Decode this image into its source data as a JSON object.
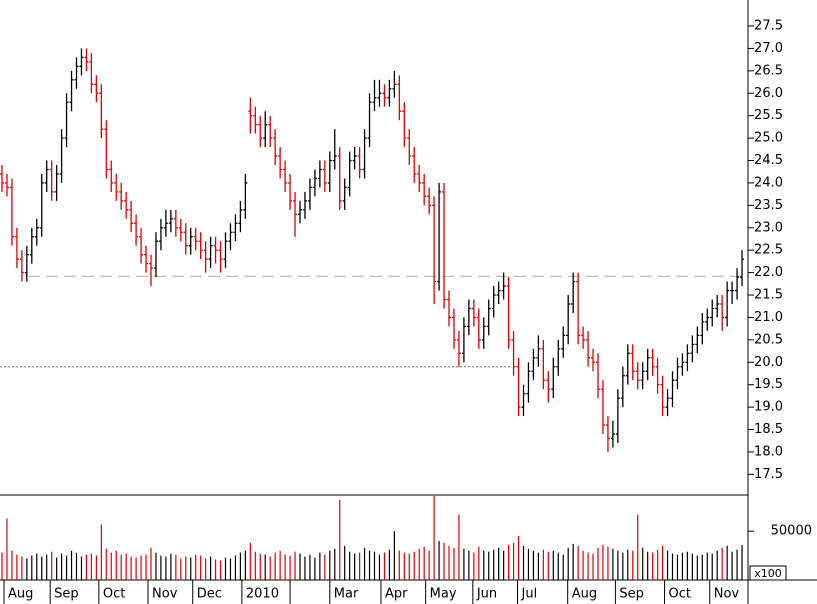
{
  "chart_data": [
    {
      "type": "ohlc",
      "up_color": "#000000",
      "down_color": "#e00000",
      "x": [
        0,
        1,
        2,
        3,
        4,
        5,
        6,
        7,
        8,
        9,
        10,
        11,
        12,
        13,
        14,
        15,
        16,
        17,
        18,
        19,
        20,
        21,
        22,
        23,
        24,
        25,
        26,
        27,
        28,
        29,
        30,
        31,
        32,
        33,
        34,
        35,
        36,
        37,
        38,
        39,
        40,
        41,
        42,
        43,
        44,
        45,
        46,
        47,
        48,
        49,
        50,
        51,
        52,
        53,
        54,
        55,
        56,
        57,
        58,
        59,
        60,
        61,
        62,
        63,
        64,
        65,
        66,
        67,
        68,
        69,
        70,
        71,
        72,
        73,
        74,
        75,
        76,
        77,
        78,
        79,
        80,
        81,
        82,
        83,
        84,
        85,
        86,
        87,
        88,
        89,
        90,
        91,
        92,
        93,
        94,
        95,
        96,
        97,
        98,
        99,
        100,
        101,
        102,
        103,
        104,
        105,
        106,
        107,
        108,
        109,
        110,
        111,
        112,
        113,
        114,
        115,
        116,
        117,
        118,
        119,
        120,
        121,
        122,
        123,
        124,
        125,
        126,
        127,
        128,
        129,
        130,
        131,
        132,
        133,
        134,
        135,
        136,
        137,
        138,
        139,
        140,
        141,
        142,
        143,
        144,
        145,
        146,
        147,
        148,
        149
      ],
      "open": [
        24.2,
        24.0,
        23.9,
        22.8,
        22.3,
        22.0,
        22.4,
        22.8,
        23.0,
        24.0,
        24.3,
        23.8,
        24.2,
        25.0,
        25.8,
        26.3,
        26.6,
        26.8,
        26.7,
        26.2,
        26.0,
        25.2,
        24.3,
        24.0,
        23.8,
        23.6,
        23.4,
        23.1,
        22.8,
        22.4,
        22.2,
        22.1,
        22.7,
        23.0,
        23.1,
        23.2,
        23.0,
        22.9,
        22.6,
        22.8,
        22.7,
        22.5,
        22.3,
        22.6,
        22.5,
        22.3,
        22.7,
        22.9,
        23.1,
        23.4,
        25.6,
        25.5,
        25.3,
        25.0,
        25.3,
        25.0,
        24.6,
        24.3,
        24.0,
        23.6,
        23.3,
        23.4,
        23.6,
        23.9,
        24.1,
        24.3,
        24.0,
        24.5,
        24.6,
        23.6,
        23.9,
        24.5,
        24.6,
        24.3,
        25.0,
        25.8,
        25.9,
        26.0,
        25.9,
        26.1,
        26.2,
        25.6,
        25.0,
        24.6,
        24.2,
        24.0,
        23.7,
        23.5,
        21.8,
        23.8,
        21.4,
        21.0,
        20.5,
        20.2,
        20.8,
        21.2,
        21.0,
        20.5,
        20.8,
        21.2,
        21.5,
        21.6,
        21.7,
        20.5,
        19.9,
        19.0,
        19.3,
        19.8,
        20.1,
        20.3,
        19.6,
        19.4,
        19.9,
        20.3,
        20.6,
        21.3,
        21.8,
        20.6,
        20.5,
        20.1,
        20.0,
        19.4,
        18.6,
        18.3,
        18.4,
        19.2,
        19.7,
        20.2,
        19.8,
        19.6,
        19.8,
        20.1,
        19.9,
        19.5,
        19.0,
        19.2,
        19.6,
        19.9,
        20.0,
        20.2,
        20.4,
        20.6,
        20.9,
        21.0,
        21.2,
        21.3,
        21.0,
        21.6,
        21.6,
        21.9
      ],
      "high": [
        24.4,
        24.2,
        24.1,
        23.0,
        22.5,
        22.6,
        23.0,
        23.2,
        24.2,
        24.5,
        24.5,
        24.4,
        25.2,
        26.0,
        26.5,
        26.8,
        27.0,
        27.0,
        26.9,
        26.4,
        26.2,
        25.4,
        24.5,
        24.2,
        24.0,
        23.8,
        23.6,
        23.3,
        23.0,
        22.6,
        22.4,
        22.9,
        23.2,
        23.4,
        23.4,
        23.4,
        23.2,
        23.1,
        23.0,
        23.0,
        22.9,
        22.7,
        22.8,
        22.8,
        22.7,
        22.9,
        23.1,
        23.3,
        23.6,
        24.2,
        25.9,
        25.7,
        25.5,
        25.6,
        25.5,
        25.2,
        24.8,
        24.5,
        24.2,
        23.8,
        23.6,
        23.8,
        24.1,
        24.3,
        24.5,
        24.5,
        24.7,
        25.2,
        24.8,
        24.1,
        24.7,
        24.8,
        24.8,
        25.2,
        26.0,
        26.3,
        26.3,
        26.2,
        26.3,
        26.5,
        26.4,
        25.8,
        25.2,
        24.8,
        24.4,
        24.2,
        23.9,
        23.7,
        24.0,
        24.0,
        21.6,
        21.2,
        20.7,
        21.0,
        21.4,
        21.4,
        21.2,
        21.0,
        21.4,
        21.7,
        21.8,
        22.0,
        21.9,
        20.7,
        20.1,
        19.5,
        20.0,
        20.3,
        20.6,
        20.5,
        19.8,
        20.1,
        20.5,
        20.8,
        21.5,
        22.0,
        22.0,
        20.8,
        20.7,
        20.3,
        20.2,
        19.6,
        18.8,
        18.7,
        19.4,
        19.9,
        20.4,
        20.4,
        20.0,
        20.0,
        20.3,
        20.3,
        20.1,
        19.7,
        19.4,
        19.8,
        20.1,
        20.2,
        20.4,
        20.6,
        20.8,
        21.1,
        21.2,
        21.4,
        21.5,
        21.5,
        21.8,
        21.8,
        22.1,
        22.5
      ],
      "low": [
        23.8,
        23.7,
        22.6,
        22.1,
        21.8,
        21.8,
        22.2,
        22.6,
        22.8,
        23.8,
        23.6,
        23.6,
        24.0,
        24.8,
        25.6,
        26.1,
        26.4,
        26.5,
        26.0,
        25.8,
        25.0,
        24.1,
        23.8,
        23.6,
        23.4,
        23.2,
        22.9,
        22.6,
        22.2,
        22.0,
        21.7,
        21.9,
        22.5,
        22.8,
        22.9,
        22.8,
        22.7,
        22.4,
        22.4,
        22.5,
        22.3,
        22.0,
        22.1,
        22.2,
        22.0,
        22.1,
        22.5,
        22.7,
        22.9,
        23.2,
        25.1,
        25.1,
        24.8,
        24.8,
        24.8,
        24.4,
        24.1,
        23.8,
        23.4,
        22.8,
        23.1,
        23.2,
        23.4,
        23.7,
        23.9,
        23.8,
        23.8,
        24.3,
        23.4,
        23.4,
        23.7,
        24.3,
        24.1,
        24.1,
        24.8,
        25.6,
        25.7,
        25.7,
        25.7,
        25.9,
        25.4,
        24.8,
        24.4,
        24.0,
        23.8,
        23.5,
        23.3,
        21.3,
        21.6,
        21.2,
        20.8,
        20.3,
        19.9,
        20.0,
        20.6,
        20.8,
        20.3,
        20.3,
        20.6,
        21.0,
        21.3,
        21.4,
        20.3,
        19.7,
        18.8,
        18.8,
        19.1,
        19.6,
        19.9,
        19.4,
        19.1,
        19.2,
        19.7,
        20.1,
        20.4,
        21.1,
        20.4,
        20.3,
        19.9,
        19.8,
        19.2,
        18.4,
        18.0,
        18.1,
        18.2,
        19.0,
        19.5,
        19.6,
        19.4,
        19.4,
        19.6,
        19.7,
        19.3,
        18.8,
        18.8,
        19.0,
        19.4,
        19.7,
        19.8,
        20.0,
        20.2,
        20.4,
        20.7,
        20.8,
        21.0,
        20.7,
        20.8,
        21.3,
        21.4,
        21.7
      ],
      "close": [
        24.0,
        23.9,
        22.8,
        22.3,
        22.0,
        22.4,
        22.8,
        23.0,
        24.0,
        24.3,
        23.8,
        24.2,
        25.0,
        25.8,
        26.3,
        26.6,
        26.8,
        26.7,
        26.2,
        26.0,
        25.2,
        24.3,
        24.0,
        23.8,
        23.6,
        23.4,
        23.1,
        22.8,
        22.4,
        22.2,
        22.1,
        22.7,
        23.0,
        23.1,
        23.2,
        23.0,
        22.9,
        22.6,
        22.8,
        22.7,
        22.5,
        22.3,
        22.6,
        22.5,
        22.3,
        22.7,
        22.9,
        23.1,
        23.4,
        24.0,
        25.5,
        25.3,
        25.0,
        25.3,
        25.0,
        24.6,
        24.3,
        24.0,
        23.6,
        23.3,
        23.4,
        23.6,
        23.9,
        24.1,
        24.3,
        24.0,
        24.5,
        24.6,
        23.6,
        23.9,
        24.5,
        24.6,
        24.3,
        25.0,
        25.8,
        25.9,
        26.0,
        25.9,
        26.1,
        26.2,
        25.6,
        25.0,
        24.6,
        24.2,
        24.0,
        23.7,
        23.5,
        21.8,
        23.8,
        21.4,
        21.0,
        20.5,
        20.2,
        20.8,
        21.2,
        21.0,
        20.5,
        20.8,
        21.2,
        21.5,
        21.6,
        21.7,
        20.5,
        19.9,
        19.0,
        19.3,
        19.8,
        20.1,
        20.3,
        19.6,
        19.4,
        19.9,
        20.3,
        20.6,
        21.3,
        21.8,
        20.6,
        20.5,
        20.1,
        20.0,
        19.4,
        18.6,
        18.3,
        18.4,
        19.2,
        19.7,
        20.2,
        19.8,
        19.6,
        19.8,
        20.1,
        19.9,
        19.5,
        19.0,
        19.2,
        19.6,
        19.9,
        20.0,
        20.2,
        20.4,
        20.6,
        20.9,
        21.0,
        21.2,
        21.3,
        21.0,
        21.6,
        21.6,
        21.9,
        22.3
      ],
      "xlim": [
        0,
        150
      ],
      "xticks": [
        {
          "value": 0.4,
          "label": "Aug"
        },
        {
          "value": 9.7,
          "label": "Sep"
        },
        {
          "value": 19.5,
          "label": "Oct"
        },
        {
          "value": 29.4,
          "label": "Nov"
        },
        {
          "value": 38.4,
          "label": "Dec"
        },
        {
          "value": 48.3,
          "label": "2010"
        },
        {
          "value": 58,
          "label": null
        },
        {
          "value": 66,
          "label": "Mar"
        },
        {
          "value": 76.3,
          "label": "Apr"
        },
        {
          "value": 85.3,
          "label": "May"
        },
        {
          "value": 94.8,
          "label": "Jun"
        },
        {
          "value": 103.8,
          "label": "Jul"
        },
        {
          "value": 113.9,
          "label": "Aug"
        },
        {
          "value": 123.5,
          "label": "Sep"
        },
        {
          "value": 133.4,
          "label": "Oct"
        },
        {
          "value": 142.5,
          "label": "Nov"
        }
      ],
      "ylim": [
        17.04,
        28.08
      ],
      "yticks": [
        17.5,
        {
          "value": 18,
          "label": "18.0"
        },
        18.5,
        {
          "value": 19,
          "label": "19.0"
        },
        19.5,
        {
          "value": 20,
          "label": "20.0"
        },
        20.5,
        {
          "value": 21,
          "label": "21.0"
        },
        21.5,
        {
          "value": 22,
          "label": "22.0"
        },
        22.5,
        {
          "value": 23,
          "label": "23.0"
        },
        23.5,
        {
          "value": 24,
          "label": "24.0"
        },
        24.5,
        {
          "value": 25,
          "label": "25.0"
        },
        25.5,
        {
          "value": 26,
          "label": "26.0"
        },
        26.5,
        {
          "value": 27,
          "label": "27.0"
        },
        27.5
      ],
      "reference_lines": [
        {
          "value": 21.92,
          "style": "dashed"
        },
        {
          "value": 19.9,
          "style": "dotted"
        }
      ]
    },
    {
      "type": "bar",
      "unit_label": "x100",
      "values": [
        28000,
        63000,
        30000,
        26000,
        24000,
        22000,
        25000,
        27000,
        24000,
        26000,
        29000,
        23000,
        27000,
        25000,
        30000,
        28000,
        24000,
        26000,
        27000,
        25000,
        57000,
        32000,
        28000,
        30000,
        26000,
        27000,
        24000,
        23000,
        25000,
        26000,
        33000,
        28000,
        25000,
        24000,
        27000,
        26000,
        22000,
        24000,
        23000,
        26000,
        25000,
        22000,
        24000,
        21000,
        20000,
        23000,
        22000,
        25000,
        28000,
        30000,
        38000,
        29000,
        27000,
        26000,
        24000,
        28000,
        30000,
        26000,
        25000,
        29000,
        27000,
        24000,
        26000,
        23000,
        28000,
        26000,
        30000,
        32000,
        82000,
        35000,
        29000,
        27000,
        28000,
        33000,
        30000,
        29000,
        26000,
        28000,
        31000,
        50000,
        30000,
        28000,
        27000,
        29000,
        32000,
        34000,
        30000,
        86000,
        40000,
        38000,
        35000,
        33000,
        67000,
        32000,
        30000,
        28000,
        34000,
        30000,
        29000,
        31000,
        33000,
        30000,
        36000,
        38000,
        45000,
        35000,
        32000,
        30000,
        28000,
        31000,
        29000,
        30000,
        28000,
        26000,
        33000,
        37000,
        35000,
        30000,
        28000,
        27000,
        33000,
        36000,
        34000,
        32000,
        30000,
        28000,
        31000,
        30000,
        67000,
        33000,
        29000,
        28000,
        31000,
        35000,
        30000,
        27000,
        26000,
        28000,
        29000,
        27000,
        25000,
        26000,
        28000,
        27000,
        30000,
        33000,
        35000,
        29000,
        31000,
        36000
      ],
      "ylim": [
        0,
        87000
      ],
      "yticks": [
        50000
      ]
    }
  ]
}
